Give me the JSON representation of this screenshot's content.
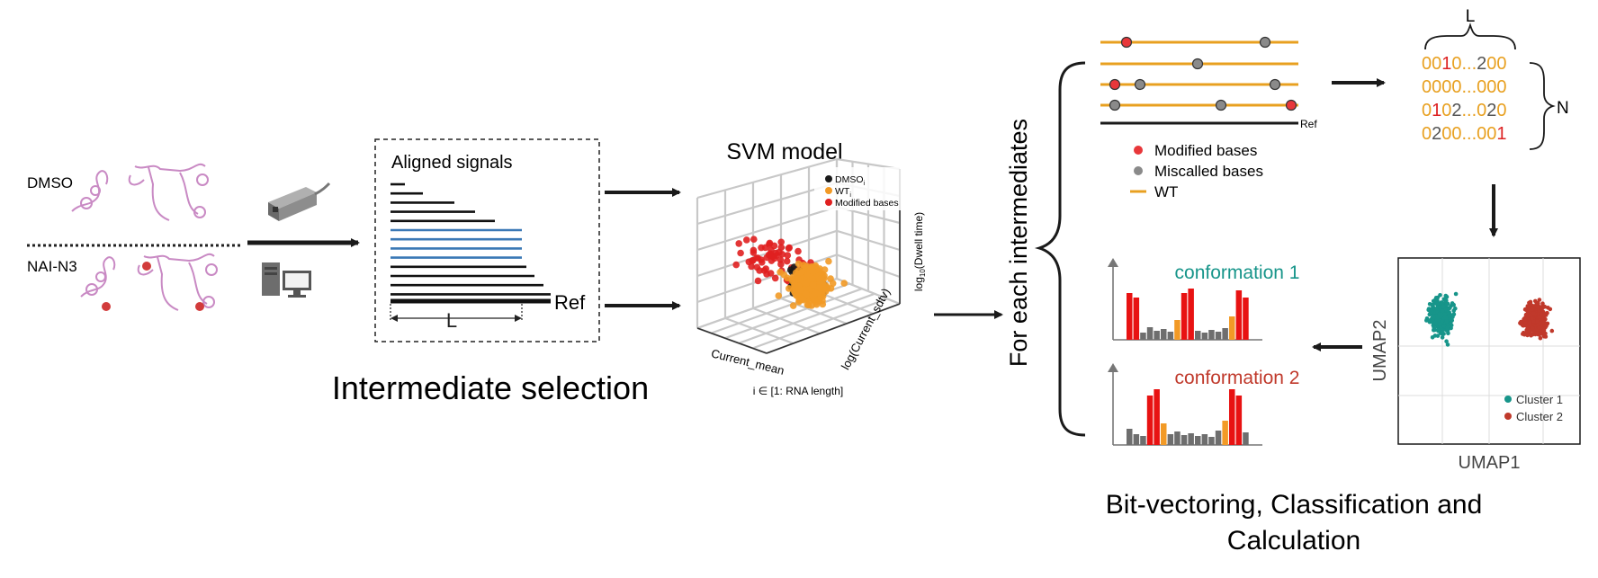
{
  "left": {
    "label_dmso": "DMSO",
    "label_nai": "NAI-N3"
  },
  "aligned": {
    "title": "Aligned signals",
    "ref": "Ref",
    "length": "L"
  },
  "intermediate_title": "Intermediate selection",
  "svm": {
    "title": "SVM model",
    "legend": [
      "DMSO",
      "WT",
      "Modified bases"
    ],
    "legend_subscript": "i",
    "axis_x": "Current_mean",
    "axis_y": "log(Current_sdtv)",
    "axis_z": "log",
    "axis_z_sub": "10",
    "axis_z_rest": "(Dwell time)",
    "index_label": "i ∈ [1: RNA length]"
  },
  "for_each": "For each  intermediates",
  "reads": {
    "ref": "Ref",
    "legend": [
      "Modified bases",
      "Miscalled bases",
      "WT"
    ]
  },
  "matrix": {
    "top_label": "L",
    "side_label": "N",
    "rows": [
      [
        [
          "00",
          "#e8a020"
        ],
        [
          "1",
          "#dd2222"
        ],
        [
          "0...",
          "#e8a020"
        ],
        [
          "2",
          "#555555"
        ],
        [
          "00",
          "#e8a020"
        ]
      ],
      [
        [
          "0000...000",
          "#e8a020"
        ]
      ],
      [
        [
          "0",
          "#e8a020"
        ],
        [
          "1",
          "#dd2222"
        ],
        [
          "0",
          "#e8a020"
        ],
        [
          "2",
          "#555555"
        ],
        [
          "...0",
          "#e8a020"
        ],
        [
          "2",
          "#555555"
        ],
        [
          "0",
          "#e8a020"
        ]
      ],
      [
        [
          "0",
          "#e8a020"
        ],
        [
          "2",
          "#555555"
        ],
        [
          "00...00",
          "#e8a020"
        ],
        [
          "1",
          "#dd2222"
        ]
      ]
    ]
  },
  "umap": {
    "xlabel": "UMAP1",
    "ylabel": "UMAP2",
    "legend": [
      "Cluster 1",
      "Cluster 2"
    ]
  },
  "conf": {
    "c1": "conformation 1",
    "c2": "conformation 2"
  },
  "bottom_title_line1": "Bit-vectoring, Classification and",
  "bottom_title_line2": "Calculation",
  "colors": {
    "orange": "#e8a020",
    "red": "#dd2222",
    "teal": "#17958a",
    "darkred": "#c0392b",
    "blue": "#3a78b5",
    "gray": "#777777",
    "pink": "#c98ac4"
  }
}
